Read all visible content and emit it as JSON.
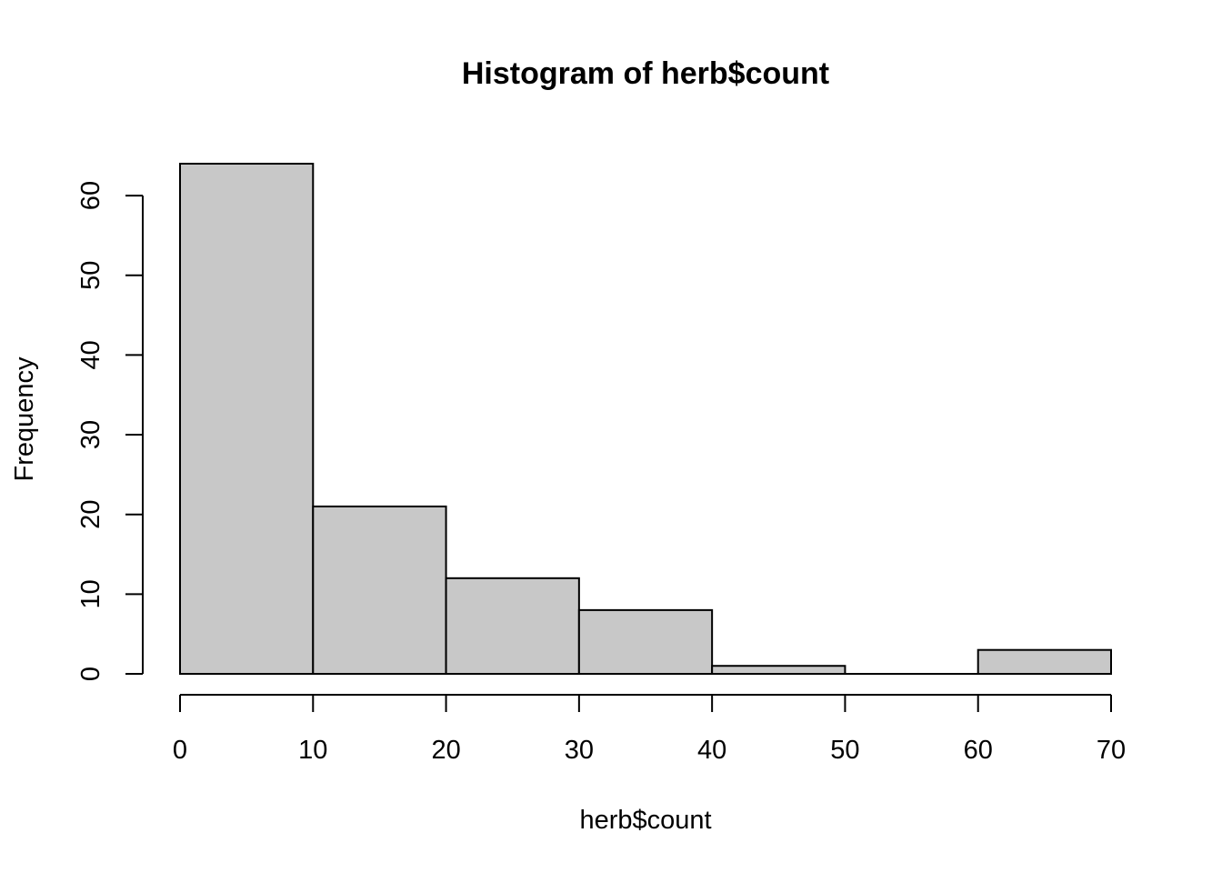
{
  "chart_data": {
    "type": "bar",
    "title": "Histogram of herb$count",
    "xlabel": "herb$count",
    "ylabel": "Frequency",
    "bins": [
      {
        "x0": 0,
        "x1": 10,
        "count": 64
      },
      {
        "x0": 10,
        "x1": 20,
        "count": 21
      },
      {
        "x0": 20,
        "x1": 30,
        "count": 12
      },
      {
        "x0": 30,
        "x1": 40,
        "count": 8
      },
      {
        "x0": 40,
        "x1": 50,
        "count": 1
      },
      {
        "x0": 50,
        "x1": 60,
        "count": 0
      },
      {
        "x0": 60,
        "x1": 70,
        "count": 3
      }
    ],
    "xlim": [
      0,
      70
    ],
    "ylim": [
      0,
      64
    ],
    "x_ticks": [
      0,
      10,
      20,
      30,
      40,
      50,
      60,
      70
    ],
    "y_ticks": [
      0,
      10,
      20,
      30,
      40,
      50,
      60
    ],
    "x_tick_labels": [
      "0",
      "10",
      "20",
      "30",
      "40",
      "50",
      "60",
      "70"
    ],
    "y_tick_labels": [
      "0",
      "10",
      "20",
      "30",
      "40",
      "50",
      "60"
    ],
    "grid": false,
    "colors": {
      "bar_fill": "#c8c8c8",
      "bar_stroke": "#000000"
    }
  }
}
